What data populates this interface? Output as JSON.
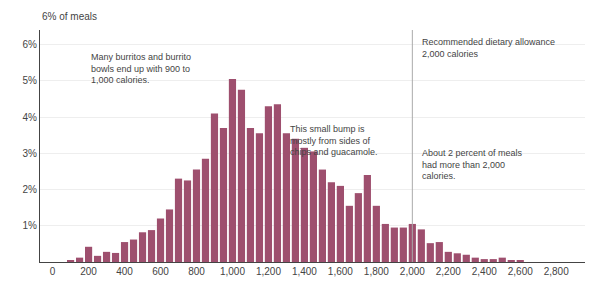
{
  "chart_data": {
    "type": "bar",
    "ylabel": "6% of meals",
    "x": [
      100,
      150,
      200,
      250,
      300,
      350,
      400,
      450,
      500,
      550,
      600,
      650,
      700,
      750,
      800,
      850,
      900,
      950,
      1000,
      1050,
      1100,
      1150,
      1200,
      1250,
      1300,
      1350,
      1400,
      1450,
      1500,
      1550,
      1600,
      1650,
      1700,
      1750,
      1800,
      1850,
      1900,
      1950,
      2000,
      2050,
      2100,
      2150,
      2200,
      2250,
      2300,
      2350,
      2400,
      2450,
      2500,
      2550,
      2600,
      2650,
      2700,
      2750,
      2800,
      2850,
      2900
    ],
    "values": [
      0.03,
      0.12,
      0.42,
      0.17,
      0.28,
      0.25,
      0.55,
      0.62,
      0.82,
      0.88,
      1.2,
      1.45,
      2.3,
      2.25,
      2.55,
      2.85,
      4.1,
      3.7,
      5.05,
      4.75,
      3.7,
      3.55,
      4.3,
      4.35,
      3.55,
      3.4,
      3.15,
      3.05,
      2.55,
      2.2,
      2.1,
      1.55,
      1.9,
      2.4,
      1.55,
      1.05,
      0.95,
      0.95,
      1.05,
      0.9,
      0.52,
      0.55,
      0.28,
      0.24,
      0.2,
      0.12,
      0.08,
      0.08,
      0.12,
      0.04,
      0.04,
      0.0,
      0.0,
      0.0,
      0.0,
      0.0,
      0.0
    ],
    "color": "#9e4f6e",
    "xlim": [
      -70,
      2960
    ],
    "xticks": [
      0,
      200,
      400,
      600,
      800,
      {
        "value": 1000,
        "label": "1,000"
      },
      {
        "value": 1200,
        "label": "1,200"
      },
      {
        "value": 1400,
        "label": "1,400"
      },
      {
        "value": 1600,
        "label": "1,600"
      },
      {
        "value": 1800,
        "label": "1,800"
      },
      {
        "value": 2000,
        "label": "2,000"
      },
      {
        "value": 2200,
        "label": "2,200"
      },
      {
        "value": 2400,
        "label": "2,400"
      },
      {
        "value": 2600,
        "label": "2,600"
      },
      {
        "value": 2800,
        "label": "2,800"
      }
    ],
    "ylim": [
      0,
      6.4
    ],
    "yticks": [
      {
        "value": 1,
        "label": "1%"
      },
      {
        "value": 2,
        "label": "2%"
      },
      {
        "value": 3,
        "label": "3%"
      },
      {
        "value": 4,
        "label": "4%"
      },
      {
        "value": 5,
        "label": "5%"
      },
      {
        "value": 6,
        "label": "6%"
      }
    ],
    "grid": "y",
    "vline": {
      "x": 2000,
      "color": "#aaaaaa"
    },
    "annotations": [
      {
        "text": "Many burritos and burrito\nbowls end up with 900 to\n1,000 calories.",
        "x": 200,
        "y": 5.85
      },
      {
        "text": "This small bump is\nmostly from sides of\nchips and guacamole.",
        "x": 1310,
        "y": 3.85
      },
      {
        "text": "Recommended dietary allowance\n2,000 calories",
        "x": 2040,
        "y": 6.25
      },
      {
        "text": "About 2 percent of meals\nhad more than 2,000\ncalories.",
        "x": 2040,
        "y": 3.2
      }
    ]
  }
}
